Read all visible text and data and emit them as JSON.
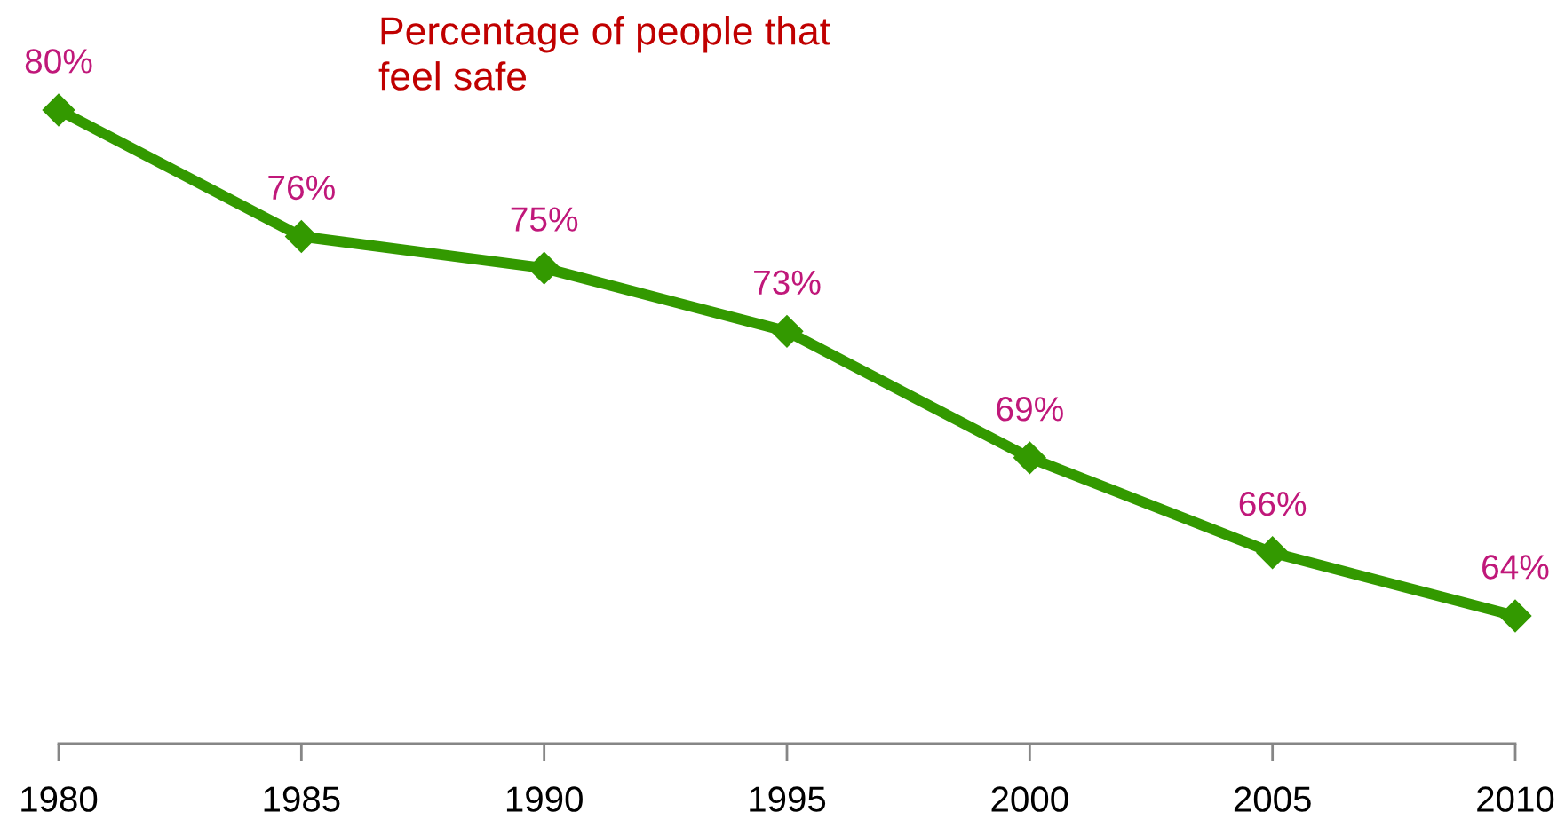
{
  "chart_data": {
    "type": "line",
    "title": "Percentage of people that feel safe",
    "categories": [
      "1980",
      "1985",
      "1990",
      "1995",
      "2000",
      "2005",
      "2010"
    ],
    "values": [
      80,
      76,
      75,
      73,
      69,
      66,
      64
    ],
    "value_labels": [
      "80%",
      "76%",
      "75%",
      "73%",
      "69%",
      "66%",
      "64%"
    ],
    "color": "#339900",
    "marker": "diamond",
    "line_style": "solid",
    "tick_labels": "x",
    "grid": false
  }
}
